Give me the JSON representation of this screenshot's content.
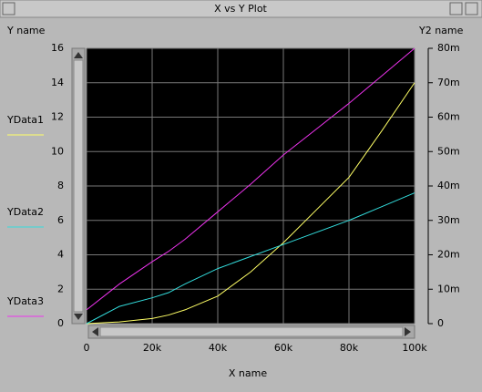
{
  "window_title": "X vs Y Plot",
  "chart_data": {
    "type": "line",
    "ylabel": "Y name",
    "y2label": "Y2 name",
    "xlabel": "X name",
    "x": [
      0,
      10000,
      20000,
      25000,
      30000,
      40000,
      50000,
      60000,
      70000,
      80000,
      90000,
      100000
    ],
    "series": [
      {
        "name": "YData1",
        "color": "#ffff66",
        "values": [
          0,
          0.1,
          0.3,
          0.5,
          0.8,
          1.6,
          3.0,
          4.7,
          6.6,
          8.5,
          11.2,
          14
        ]
      },
      {
        "name": "YData2",
        "color": "#33dddd",
        "values": [
          0,
          1.0,
          1.5,
          1.8,
          2.3,
          3.2,
          3.9,
          4.6,
          5.3,
          6.0,
          6.8,
          7.6
        ]
      },
      {
        "name": "YData3",
        "color": "#ee33ee",
        "values": [
          0.8,
          2.3,
          3.6,
          4.2,
          4.9,
          6.5,
          8.1,
          9.8,
          11.3,
          12.8,
          14.4,
          16
        ]
      }
    ],
    "xlim": [
      0,
      100000
    ],
    "xticks": [
      0,
      {
        "value": 20000,
        "label": "20k"
      },
      {
        "value": 40000,
        "label": "40k"
      },
      {
        "value": 60000,
        "label": "60k"
      },
      {
        "value": 80000,
        "label": "80k"
      },
      {
        "value": 100000,
        "label": "100k"
      }
    ],
    "ylim": [
      0,
      16
    ],
    "yticks": [
      0,
      2,
      4,
      6,
      8,
      10,
      12,
      14,
      16
    ],
    "y2lim": [
      0,
      0.08
    ],
    "y2ticks": [
      0,
      {
        "value": 0.01,
        "label": "10m"
      },
      {
        "value": 0.02,
        "label": "20m"
      },
      {
        "value": 0.03,
        "label": "30m"
      },
      {
        "value": 0.04,
        "label": "40m"
      },
      {
        "value": 0.05,
        "label": "50m"
      },
      {
        "value": 0.06,
        "label": "60m"
      },
      {
        "value": 0.07,
        "label": "70m"
      },
      {
        "value": 0.08,
        "label": "80m"
      }
    ],
    "grid": true
  }
}
